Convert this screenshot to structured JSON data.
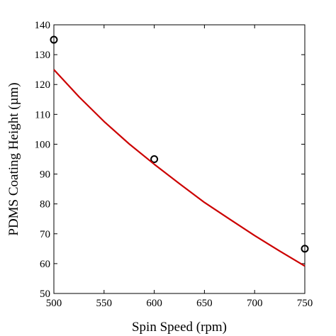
{
  "chart_data": {
    "type": "scatter",
    "xlabel": "Spin Speed (rpm)",
    "ylabel": "PDMS Coating Height (µm)",
    "xlim": [
      500,
      750
    ],
    "ylim": [
      50,
      140
    ],
    "x_ticks": [
      500,
      550,
      600,
      650,
      700,
      750
    ],
    "y_ticks": [
      50,
      60,
      70,
      80,
      90,
      100,
      110,
      120,
      130,
      140
    ],
    "grid": false,
    "legend": "none",
    "series": [
      {
        "kind": "markers",
        "marker": "circle-open",
        "color": "#000000",
        "points": [
          {
            "x": 500,
            "y": 135
          },
          {
            "x": 600,
            "y": 95
          },
          {
            "x": 750,
            "y": 65
          }
        ]
      },
      {
        "kind": "line",
        "color": "#cc0000",
        "points": [
          {
            "x": 500,
            "y": 125
          },
          {
            "x": 525,
            "y": 115.9
          },
          {
            "x": 550,
            "y": 107.6
          },
          {
            "x": 575,
            "y": 100.1
          },
          {
            "x": 600,
            "y": 93.3
          },
          {
            "x": 625,
            "y": 86.8
          },
          {
            "x": 650,
            "y": 80.5
          },
          {
            "x": 675,
            "y": 74.9
          },
          {
            "x": 700,
            "y": 69.4
          },
          {
            "x": 725,
            "y": 64.2
          },
          {
            "x": 750,
            "y": 59.2
          }
        ]
      }
    ]
  }
}
